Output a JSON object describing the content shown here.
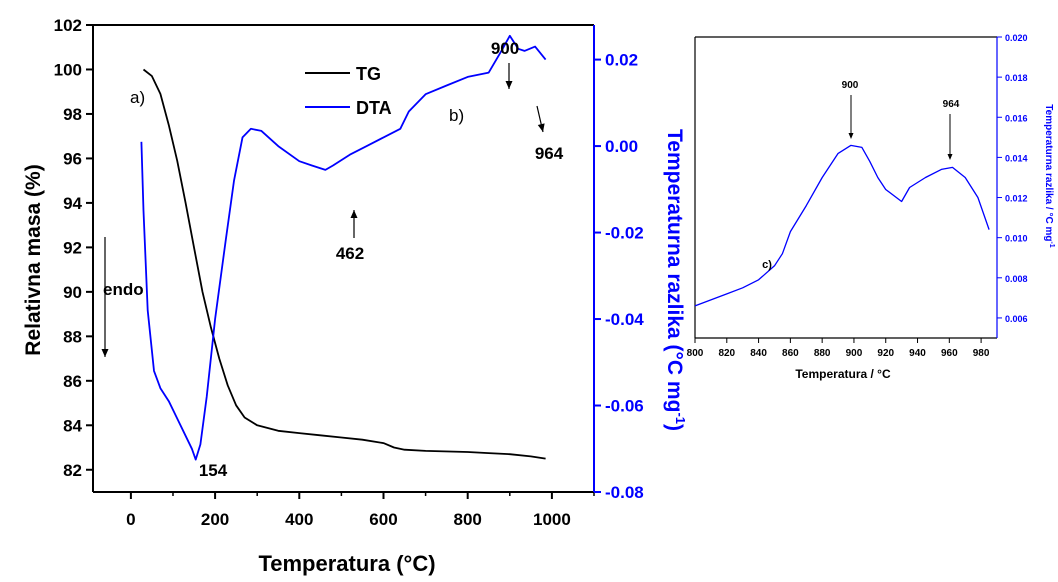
{
  "chart_data": [
    {
      "type": "line",
      "panel_label": "",
      "xlabel": "Temperatura (°C)",
      "xlabel_base": "Temperatura (",
      "xlabel_unit": "°C)",
      "xlim": [
        -90,
        1100
      ],
      "xticks": [
        0,
        200,
        400,
        600,
        800,
        1000
      ],
      "y_left": {
        "label": "Relativna masa (%)",
        "lim": [
          81,
          102
        ],
        "ticks": [
          82,
          84,
          86,
          88,
          90,
          92,
          94,
          96,
          98,
          100,
          102
        ]
      },
      "y_right": {
        "label": "Temperaturna razlika (°C mg⁻¹)",
        "label_main": "Temperaturna razlika (",
        "label_unit": "°C mg",
        "label_exp": "-1",
        "label_close": ")",
        "lim": [
          -0.08,
          0.028
        ],
        "ticks": [
          -0.08,
          -0.06,
          -0.04,
          -0.02,
          0.0,
          0.02
        ],
        "tick_labels": [
          "-0.08",
          "-0.06",
          "-0.04",
          "-0.02",
          "0.00",
          "0.02"
        ],
        "color": "#0000ff"
      },
      "legend": {
        "placement": "top-center"
      },
      "series": [
        {
          "name": "TG",
          "axis": "left",
          "color": "#000000",
          "points": [
            [
              30,
              100.0
            ],
            [
              50,
              99.7
            ],
            [
              70,
              98.9
            ],
            [
              90,
              97.5
            ],
            [
              110,
              95.9
            ],
            [
              130,
              94.0
            ],
            [
              150,
              92.0
            ],
            [
              170,
              90.0
            ],
            [
              190,
              88.4
            ],
            [
              210,
              87.0
            ],
            [
              230,
              85.8
            ],
            [
              250,
              84.9
            ],
            [
              270,
              84.35
            ],
            [
              300,
              84.0
            ],
            [
              350,
              83.75
            ],
            [
              400,
              83.65
            ],
            [
              450,
              83.55
            ],
            [
              500,
              83.45
            ],
            [
              550,
              83.35
            ],
            [
              600,
              83.2
            ],
            [
              625,
              83.0
            ],
            [
              650,
              82.9
            ],
            [
              700,
              82.85
            ],
            [
              800,
              82.8
            ],
            [
              850,
              82.75
            ],
            [
              900,
              82.7
            ],
            [
              950,
              82.6
            ],
            [
              985,
              82.5
            ]
          ]
        },
        {
          "name": "DTA",
          "axis": "right",
          "color": "#0000ff",
          "points": [
            [
              25,
              0.001
            ],
            [
              30,
              -0.015
            ],
            [
              40,
              -0.038
            ],
            [
              55,
              -0.052
            ],
            [
              70,
              -0.056
            ],
            [
              90,
              -0.059
            ],
            [
              110,
              -0.063
            ],
            [
              130,
              -0.067
            ],
            [
              145,
              -0.07
            ],
            [
              154,
              -0.0725
            ],
            [
              165,
              -0.069
            ],
            [
              180,
              -0.058
            ],
            [
              200,
              -0.04
            ],
            [
              225,
              -0.022
            ],
            [
              245,
              -0.008
            ],
            [
              265,
              0.002
            ],
            [
              285,
              0.004
            ],
            [
              310,
              0.0035
            ],
            [
              350,
              0.0
            ],
            [
              400,
              -0.0035
            ],
            [
              430,
              -0.0045
            ],
            [
              462,
              -0.0055
            ],
            [
              480,
              -0.0045
            ],
            [
              520,
              -0.002
            ],
            [
              560,
              0.0
            ],
            [
              600,
              0.002
            ],
            [
              640,
              0.004
            ],
            [
              660,
              0.008
            ],
            [
              700,
              0.012
            ],
            [
              750,
              0.014
            ],
            [
              800,
              0.016
            ],
            [
              850,
              0.017
            ],
            [
              880,
              0.022
            ],
            [
              900,
              0.0255
            ],
            [
              920,
              0.0225
            ],
            [
              935,
              0.022
            ],
            [
              960,
              0.023
            ],
            [
              985,
              0.02
            ]
          ]
        }
      ],
      "annotations": [
        {
          "text": "a)"
        },
        {
          "text": "b)"
        },
        {
          "text": "900"
        },
        {
          "text": "964"
        },
        {
          "text": "462"
        },
        {
          "text": "154"
        },
        {
          "text": "endo"
        }
      ]
    },
    {
      "type": "line",
      "panel_label": "c)",
      "xlabel": "Temperatura / °C",
      "ylabel": "Temperaturna razlika / °C mg⁻¹",
      "ylabel_main": "Temperaturna razlika / °C mg",
      "ylabel_exp": "-1",
      "xlim": [
        800,
        990
      ],
      "xticks": [
        800,
        820,
        840,
        860,
        880,
        900,
        920,
        940,
        960,
        980
      ],
      "ylim": [
        0.005,
        0.02
      ],
      "yticks": [
        0.006,
        0.008,
        0.01,
        0.012,
        0.014,
        0.016,
        0.018,
        0.02
      ],
      "ytick_labels": [
        "0.006",
        "0.008",
        "0.010",
        "0.012",
        "0.014",
        "0.016",
        "0.018",
        "0.020"
      ],
      "series": [
        {
          "name": "",
          "color": "#0000ff",
          "points": [
            [
              800,
              0.0066
            ],
            [
              810,
              0.0069
            ],
            [
              820,
              0.0072
            ],
            [
              830,
              0.0075
            ],
            [
              840,
              0.0079
            ],
            [
              850,
              0.0086
            ],
            [
              855,
              0.0092
            ],
            [
              860,
              0.0103
            ],
            [
              870,
              0.0116
            ],
            [
              880,
              0.013
            ],
            [
              890,
              0.0142
            ],
            [
              898,
              0.0146
            ],
            [
              905,
              0.0145
            ],
            [
              910,
              0.0138
            ],
            [
              915,
              0.013
            ],
            [
              920,
              0.0124
            ],
            [
              930,
              0.0118
            ],
            [
              935,
              0.0125
            ],
            [
              945,
              0.013
            ],
            [
              955,
              0.0134
            ],
            [
              962,
              0.0135
            ],
            [
              970,
              0.013
            ],
            [
              978,
              0.012
            ],
            [
              985,
              0.0104
            ]
          ]
        }
      ],
      "annotations": [
        {
          "text": "900"
        },
        {
          "text": "964"
        }
      ]
    }
  ]
}
